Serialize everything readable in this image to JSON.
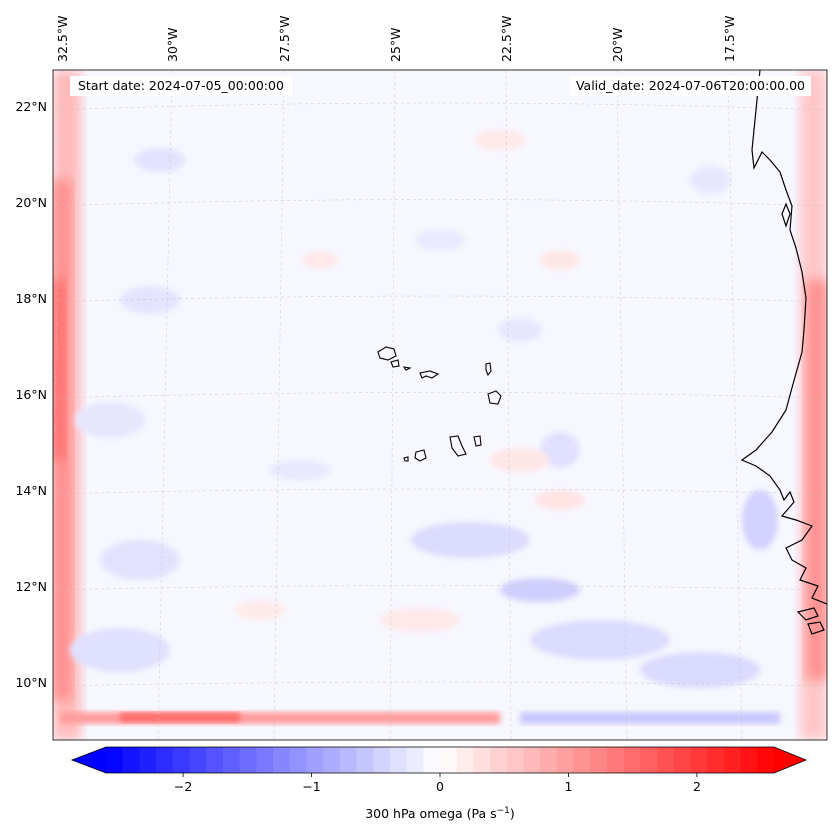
{
  "header": {
    "start_date": "Start date: 2024-07-05_00:00:00",
    "valid_date": "Valid_date: 2024-07-06T20:00:00.00"
  },
  "map": {
    "top_longitude_labels": [
      "32.5°W",
      "30°W",
      "27.5°W",
      "25°W",
      "22.5°W",
      "20°W",
      "17.5°W"
    ],
    "left_latitude_labels": [
      "22°N",
      "20°N",
      "18°N",
      "16°N",
      "14°N",
      "12°N",
      "10°N"
    ],
    "features": [
      "coastline-west-africa",
      "cape-verde-islands"
    ]
  },
  "colorbar": {
    "label_prefix": "300 hPa omega (Pa s",
    "label_exponent": "−1",
    "label_suffix": ")",
    "ticks": [
      "−2",
      "−1",
      "0",
      "1",
      "2"
    ],
    "tick_values": [
      -2,
      -1,
      0,
      1,
      2
    ],
    "range": [
      -2.6,
      2.6
    ],
    "colormap": "bwr",
    "color_min": "#0000ff",
    "color_mid": "#ffffff",
    "color_max": "#ff0000",
    "extend": "both"
  }
}
